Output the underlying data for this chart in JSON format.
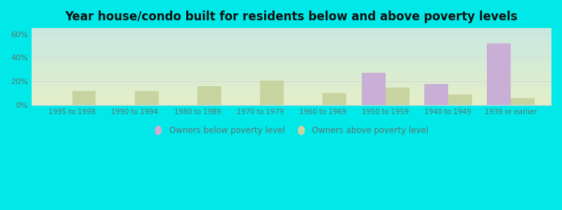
{
  "categories": [
    "1995 to 1998",
    "1990 to 1994",
    "1980 to 1989",
    "1970 to 1979",
    "1960 to 1969",
    "1950 to 1959",
    "1940 to 1949",
    "1939 or earlier"
  ],
  "below_poverty": [
    0,
    0,
    0,
    0,
    0,
    27,
    18,
    52
  ],
  "above_poverty": [
    12,
    12,
    16,
    21,
    10,
    15,
    9,
    6
  ],
  "below_color": "#c9aed6",
  "above_color": "#c8d4a0",
  "title": "Year house/condo built for residents below and above poverty levels",
  "title_fontsize": 12,
  "ylim": [
    0,
    65
  ],
  "yticks": [
    0,
    20,
    40,
    60
  ],
  "ytick_labels": [
    "0%",
    "20%",
    "40%",
    "60%"
  ],
  "bar_width": 0.38,
  "legend_below": "Owners below poverty level",
  "legend_above": "Owners above poverty level",
  "bg_color_top": "#c8e8e0",
  "bg_color_bottom": "#e4efc8",
  "outer_bg": "#00e8e8",
  "grid_color": "#d8d8d8",
  "tick_color": "#607070",
  "title_color": "#101010"
}
